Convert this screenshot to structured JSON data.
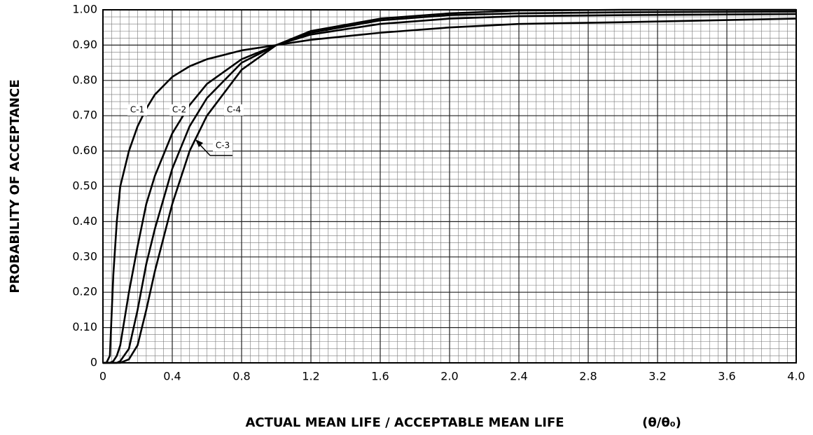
{
  "chart_data": {
    "type": "line",
    "xlabel": "ACTUAL MEAN LIFE / ACCEPTABLE MEAN LIFE",
    "xlabel_formula": "(θ/θ₀)",
    "ylabel": "PROBABILITY OF ACCEPTANCE",
    "x": [
      0,
      0.02,
      0.04,
      0.06,
      0.08,
      0.1,
      0.15,
      0.2,
      0.25,
      0.3,
      0.4,
      0.5,
      0.6,
      0.8,
      1.0,
      1.2,
      1.6,
      2.0,
      2.4,
      3.0,
      4.0
    ],
    "series": [
      {
        "name": "C-1",
        "color": "#000000",
        "values": [
          0,
          0,
          0.02,
          0.25,
          0.4,
          0.5,
          0.6,
          0.67,
          0.72,
          0.76,
          0.81,
          0.84,
          0.86,
          0.885,
          0.9,
          0.915,
          0.935,
          0.95,
          0.96,
          0.965,
          0.975
        ]
      },
      {
        "name": "C-2",
        "color": "#000000",
        "values": [
          0,
          0,
          0,
          0.005,
          0.02,
          0.05,
          0.2,
          0.33,
          0.45,
          0.53,
          0.65,
          0.73,
          0.79,
          0.86,
          0.9,
          0.93,
          0.96,
          0.975,
          0.982,
          0.985,
          0.988
        ]
      },
      {
        "name": "C-3",
        "color": "#000000",
        "values": [
          0,
          0,
          0,
          0,
          0,
          0.005,
          0.04,
          0.15,
          0.28,
          0.38,
          0.55,
          0.67,
          0.75,
          0.85,
          0.9,
          0.935,
          0.97,
          0.985,
          0.99,
          0.993,
          0.995
        ]
      },
      {
        "name": "C-4",
        "color": "#000000",
        "values": [
          0,
          0,
          0,
          0,
          0,
          0,
          0.01,
          0.05,
          0.15,
          0.26,
          0.45,
          0.6,
          0.7,
          0.83,
          0.9,
          0.94,
          0.975,
          0.99,
          0.998,
          1.0,
          1.0
        ]
      }
    ],
    "xlim": [
      0,
      4
    ],
    "ylim": [
      0,
      1
    ],
    "xticks": [
      0,
      0.4,
      0.8,
      1.2,
      1.6,
      {
        "value": 2,
        "label": "2.0"
      },
      2.4,
      2.8,
      3.2,
      3.6,
      {
        "value": 4,
        "label": "4.0"
      }
    ],
    "yticks": [
      0,
      {
        "value": 0.1,
        "label": "0.10"
      },
      {
        "value": 0.2,
        "label": "0.20"
      },
      {
        "value": 0.3,
        "label": "0.30"
      },
      {
        "value": 0.4,
        "label": "0.40"
      },
      {
        "value": 0.5,
        "label": "0.50"
      },
      {
        "value": 0.6,
        "label": "0.60"
      },
      {
        "value": 0.7,
        "label": "0.70"
      },
      {
        "value": 0.8,
        "label": "0.80"
      },
      {
        "value": 0.9,
        "label": "0.90"
      },
      {
        "value": 1,
        "label": "1.00"
      }
    ],
    "grid": true
  }
}
